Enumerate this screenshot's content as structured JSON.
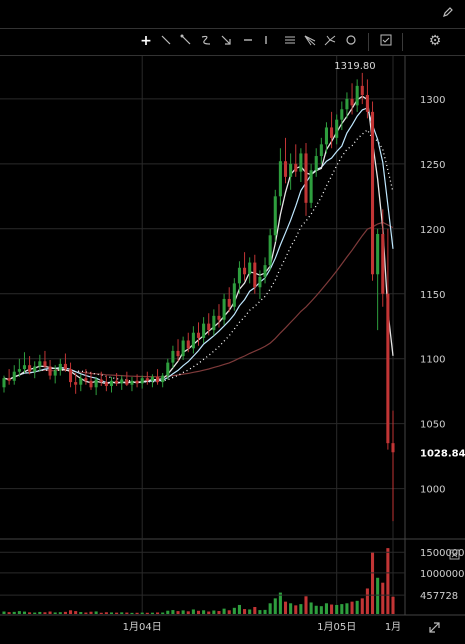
{
  "header": {
    "corner_icon": "pencil-icon"
  },
  "toolbar": {
    "icons": [
      "crosshair-icon",
      "trendline-icon",
      "ray-icon",
      "curve-icon",
      "arrow-icon",
      "horizontal-line-icon",
      "vertical-line-icon",
      "parallel-lines-icon",
      "fan-icon",
      "pitchfork-icon",
      "circle-icon",
      "screenshot-icon",
      "settings-icon"
    ]
  },
  "chart_data": {
    "type": "candlestick",
    "x_tick_labels": [
      "1月04日",
      "1月05日",
      "1月"
    ],
    "y_ticks": [
      1000,
      1050,
      1100,
      1150,
      1200,
      1250,
      1300
    ],
    "ylim": [
      962,
      1333
    ],
    "peak_label": "1319.80",
    "last_price_label": "1028.84",
    "volume_ticks": [
      "1500000",
      "1000000",
      "457728"
    ],
    "volume_ylim": [
      0,
      1700000
    ],
    "colors": {
      "up": "#2e9e3e",
      "down": "#c23535",
      "ma_white": "#e6e6e6",
      "ma_cyan": "#bfe8ff",
      "ma_red": "#7e3a3a",
      "grid": "#2a2a2a"
    },
    "candles": [
      [
        1078,
        1087,
        1074,
        1085,
        60000
      ],
      [
        1085,
        1092,
        1080,
        1083,
        45000
      ],
      [
        1083,
        1095,
        1080,
        1090,
        52000
      ],
      [
        1090,
        1100,
        1086,
        1092,
        70000
      ],
      [
        1092,
        1105,
        1089,
        1095,
        58000
      ],
      [
        1095,
        1102,
        1088,
        1090,
        40000
      ],
      [
        1090,
        1098,
        1085,
        1094,
        35000
      ],
      [
        1094,
        1103,
        1090,
        1098,
        50000
      ],
      [
        1098,
        1106,
        1093,
        1094,
        42000
      ],
      [
        1094,
        1099,
        1084,
        1087,
        60000
      ],
      [
        1087,
        1095,
        1081,
        1091,
        38000
      ],
      [
        1091,
        1100,
        1087,
        1096,
        44000
      ],
      [
        1096,
        1104,
        1090,
        1092,
        52000
      ],
      [
        1092,
        1097,
        1078,
        1082,
        90000
      ],
      [
        1082,
        1089,
        1073,
        1080,
        70000
      ],
      [
        1080,
        1088,
        1075,
        1085,
        48000
      ],
      [
        1085,
        1092,
        1080,
        1083,
        36000
      ],
      [
        1083,
        1090,
        1076,
        1078,
        55000
      ],
      [
        1078,
        1086,
        1072,
        1084,
        62000
      ],
      [
        1084,
        1090,
        1079,
        1082,
        30000
      ],
      [
        1082,
        1087,
        1075,
        1079,
        42000
      ],
      [
        1079,
        1086,
        1074,
        1083,
        38000
      ],
      [
        1083,
        1089,
        1079,
        1081,
        33000
      ],
      [
        1081,
        1087,
        1076,
        1084,
        40000
      ],
      [
        1084,
        1090,
        1079,
        1080,
        35000
      ],
      [
        1080,
        1086,
        1075,
        1083,
        28000
      ],
      [
        1083,
        1088,
        1078,
        1081,
        30000
      ],
      [
        1081,
        1087,
        1077,
        1085,
        34000
      ],
      [
        1085,
        1090,
        1080,
        1083,
        30000
      ],
      [
        1083,
        1088,
        1078,
        1086,
        32000
      ],
      [
        1086,
        1092,
        1080,
        1082,
        37000
      ],
      [
        1082,
        1089,
        1078,
        1087,
        36000
      ],
      [
        1087,
        1100,
        1084,
        1097,
        80000
      ],
      [
        1097,
        1110,
        1093,
        1106,
        95000
      ],
      [
        1106,
        1115,
        1098,
        1102,
        70000
      ],
      [
        1102,
        1117,
        1099,
        1114,
        88000
      ],
      [
        1114,
        1120,
        1105,
        1108,
        65000
      ],
      [
        1108,
        1125,
        1104,
        1120,
        110000
      ],
      [
        1120,
        1128,
        1110,
        1116,
        78000
      ],
      [
        1116,
        1132,
        1112,
        1127,
        90000
      ],
      [
        1127,
        1135,
        1118,
        1122,
        60000
      ],
      [
        1122,
        1138,
        1118,
        1133,
        85000
      ],
      [
        1133,
        1142,
        1124,
        1130,
        72000
      ],
      [
        1130,
        1150,
        1126,
        1146,
        130000
      ],
      [
        1146,
        1155,
        1136,
        1140,
        90000
      ],
      [
        1140,
        1162,
        1137,
        1158,
        150000
      ],
      [
        1158,
        1175,
        1150,
        1170,
        220000
      ],
      [
        1170,
        1182,
        1160,
        1165,
        120000
      ],
      [
        1165,
        1178,
        1158,
        1174,
        110000
      ],
      [
        1174,
        1180,
        1150,
        1155,
        170000
      ],
      [
        1155,
        1168,
        1146,
        1163,
        95000
      ],
      [
        1163,
        1178,
        1158,
        1172,
        100000
      ],
      [
        1172,
        1200,
        1168,
        1195,
        260000
      ],
      [
        1195,
        1230,
        1190,
        1225,
        380000
      ],
      [
        1225,
        1262,
        1218,
        1252,
        520000
      ],
      [
        1252,
        1270,
        1235,
        1240,
        300000
      ],
      [
        1240,
        1258,
        1230,
        1250,
        260000
      ],
      [
        1250,
        1265,
        1240,
        1244,
        210000
      ],
      [
        1244,
        1262,
        1236,
        1258,
        240000
      ],
      [
        1258,
        1266,
        1210,
        1220,
        430000
      ],
      [
        1220,
        1250,
        1216,
        1245,
        280000
      ],
      [
        1245,
        1262,
        1240,
        1256,
        200000
      ],
      [
        1256,
        1270,
        1250,
        1265,
        190000
      ],
      [
        1265,
        1282,
        1258,
        1278,
        260000
      ],
      [
        1278,
        1290,
        1262,
        1270,
        230000
      ],
      [
        1270,
        1288,
        1265,
        1284,
        220000
      ],
      [
        1284,
        1298,
        1276,
        1292,
        240000
      ],
      [
        1292,
        1305,
        1285,
        1300,
        260000
      ],
      [
        1300,
        1312,
        1288,
        1295,
        300000
      ],
      [
        1295,
        1315,
        1290,
        1310,
        320000
      ],
      [
        1310,
        1320,
        1296,
        1303,
        380000
      ],
      [
        1303,
        1315,
        1285,
        1290,
        620000
      ],
      [
        1290,
        1298,
        1160,
        1165,
        1500000
      ],
      [
        1165,
        1200,
        1122,
        1196,
        880000
      ],
      [
        1196,
        1215,
        1140,
        1150,
        760000
      ],
      [
        1150,
        1200,
        1030,
        1035,
        1600000
      ],
      [
        1035,
        1060,
        975,
        1028,
        420000
      ]
    ],
    "ma_white_offset": 4,
    "ma_cyan_offset": 8,
    "ma_red_offset": 40,
    "ma_dotted_offset": 14
  }
}
